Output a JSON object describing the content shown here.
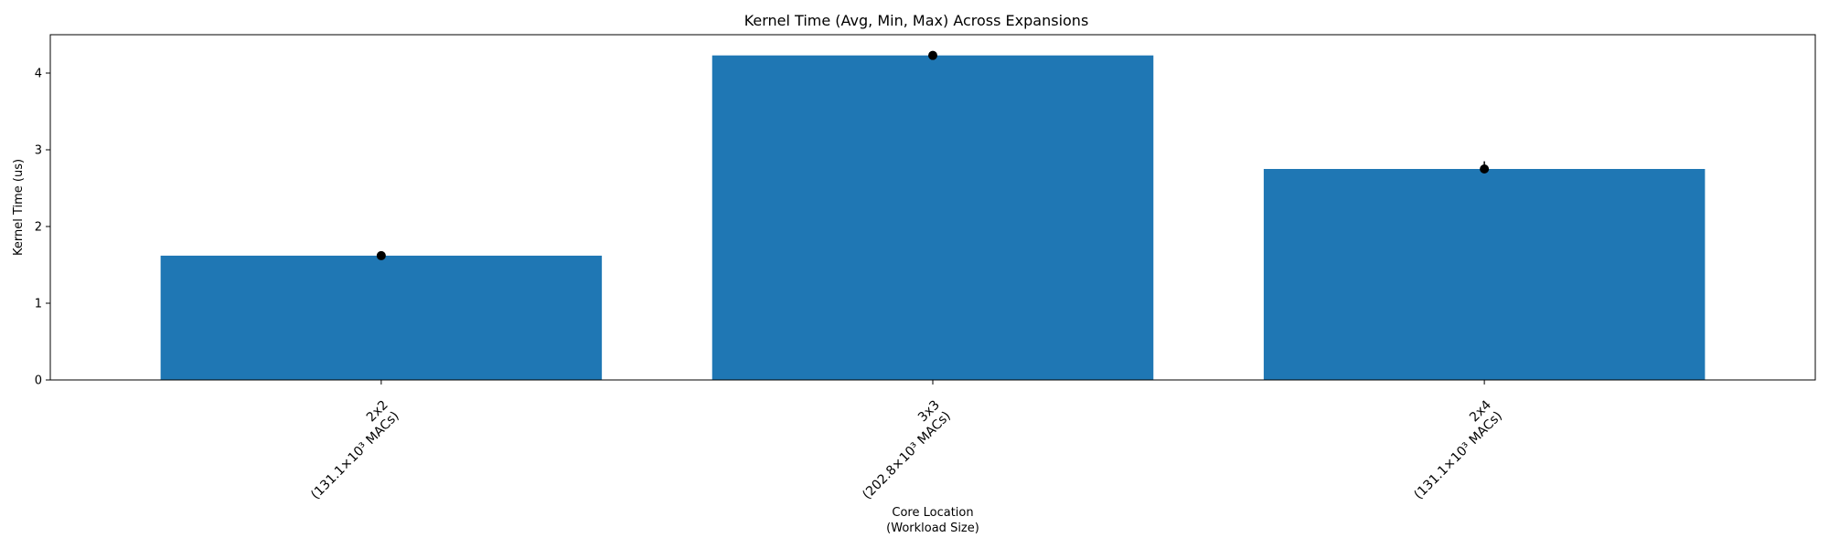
{
  "chart_data": {
    "type": "bar",
    "title": "Kernel Time (Avg, Min, Max) Across Expansions",
    "xlabel_lines": [
      "Core Location",
      "(Workload Size)"
    ],
    "ylabel": "Kernel Time (us)",
    "ylim": [
      0,
      4.5
    ],
    "yticks": [
      "0",
      "1",
      "2",
      "3",
      "4"
    ],
    "bar_color": "#1f77b4",
    "marker_color": "#000000",
    "categories": [
      {
        "line1": "2x2",
        "line2": "(131.1×10³ MACs)"
      },
      {
        "line1": "3x3",
        "line2": "(202.8×10³ MACs)"
      },
      {
        "line1": "2x4",
        "line2": "(131.1×10³ MACs)"
      }
    ],
    "values": [
      1.62,
      4.23,
      2.75
    ],
    "min": [
      1.6,
      4.21,
      2.72
    ],
    "max": [
      1.65,
      4.27,
      2.85
    ],
    "grid": false
  }
}
